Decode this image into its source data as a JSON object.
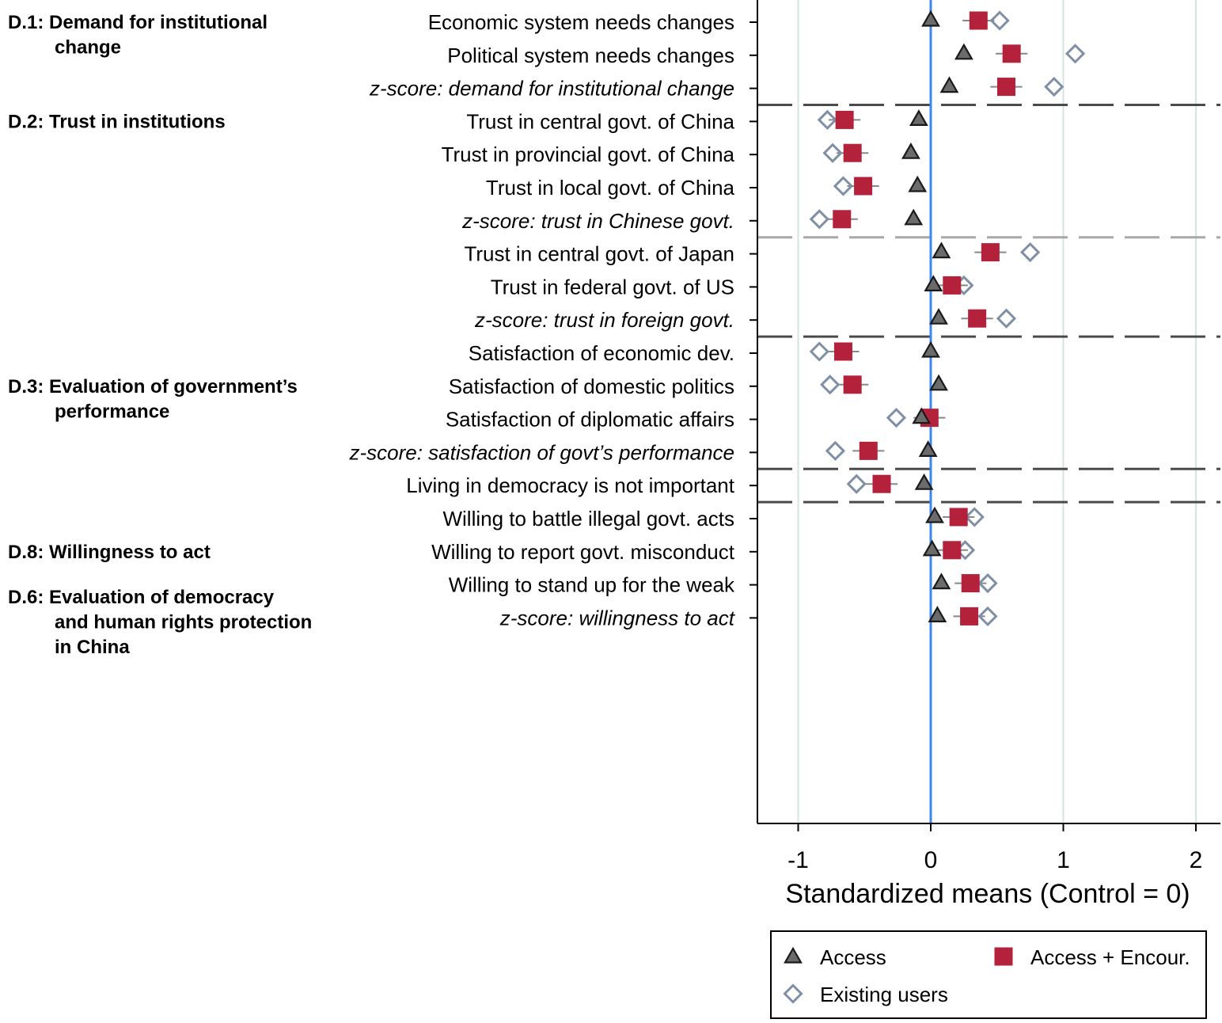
{
  "chart_data": {
    "type": "scatter",
    "xlabel": "Standardized means (Control = 0)",
    "xlim": [
      -1.3,
      2.2
    ],
    "xticks": [
      -1,
      0,
      1,
      2
    ],
    "xtick_labels": [
      "-1",
      "0",
      "1",
      "2"
    ],
    "reference_line_x": 0,
    "sections": [
      {
        "label_lines": [
          "D.1: Demand for institutional",
          "change"
        ],
        "row": 0
      },
      {
        "label_lines": [
          "D.2: Trust in institutions"
        ],
        "row": 3
      },
      {
        "label_lines": [
          "D.3: Evaluation of government’s",
          "performance"
        ],
        "row": 11
      },
      {
        "label_lines": [
          "D.6: Evaluation of democracy",
          "and human rights protection",
          "in China"
        ],
        "row": 15
      },
      {
        "label_lines": [
          "D.8: Willingness to act"
        ],
        "row": 16
      }
    ],
    "separators": [
      {
        "after_row": 2,
        "style": "dark"
      },
      {
        "after_row": 6,
        "style": "light"
      },
      {
        "after_row": 9,
        "style": "dark"
      },
      {
        "after_row": 13,
        "style": "dark"
      },
      {
        "after_row": 14,
        "style": "dark"
      }
    ],
    "rows": [
      {
        "label": "Economic system needs changes",
        "zscore": false,
        "access": 0.0,
        "encour": 0.36,
        "encour_ci": [
          0.24,
          0.48
        ],
        "existing": 0.52
      },
      {
        "label": "Political system needs changes",
        "zscore": false,
        "access": 0.25,
        "encour": 0.61,
        "encour_ci": [
          0.49,
          0.73
        ],
        "existing": 1.09
      },
      {
        "label": "z-score: demand for institutional change",
        "zscore": true,
        "access": 0.14,
        "encour": 0.57,
        "encour_ci": [
          0.45,
          0.69
        ],
        "existing": 0.93
      },
      {
        "label": "Trust in central govt. of China",
        "zscore": false,
        "access": -0.09,
        "encour": -0.65,
        "encour_ci": [
          -0.77,
          -0.53
        ],
        "existing": -0.78
      },
      {
        "label": "Trust in provincial govt. of China",
        "zscore": false,
        "access": -0.15,
        "encour": -0.59,
        "encour_ci": [
          -0.71,
          -0.47
        ],
        "existing": -0.74
      },
      {
        "label": "Trust in local govt. of China",
        "zscore": false,
        "access": -0.1,
        "encour": -0.51,
        "encour_ci": [
          -0.63,
          -0.39
        ],
        "existing": -0.66
      },
      {
        "label": "z-score: trust in Chinese govt.",
        "zscore": true,
        "access": -0.13,
        "encour": -0.67,
        "encour_ci": [
          -0.79,
          -0.55
        ],
        "existing": -0.84
      },
      {
        "label": "Trust in central govt. of Japan",
        "zscore": false,
        "access": 0.08,
        "encour": 0.45,
        "encour_ci": [
          0.33,
          0.57
        ],
        "existing": 0.75
      },
      {
        "label": "Trust in federal govt. of US",
        "zscore": false,
        "access": 0.02,
        "encour": 0.16,
        "encour_ci": [
          0.04,
          0.28
        ],
        "existing": 0.25
      },
      {
        "label": "z-score: trust in foreign govt.",
        "zscore": true,
        "access": 0.06,
        "encour": 0.35,
        "encour_ci": [
          0.23,
          0.47
        ],
        "existing": 0.57
      },
      {
        "label": "Satisfaction of economic dev.",
        "zscore": false,
        "access": 0.0,
        "encour": -0.66,
        "encour_ci": [
          -0.78,
          -0.54
        ],
        "existing": -0.84
      },
      {
        "label": "Satisfaction of domestic politics",
        "zscore": false,
        "access": 0.06,
        "encour": -0.59,
        "encour_ci": [
          -0.71,
          -0.47
        ],
        "existing": -0.76
      },
      {
        "label": "Satisfaction of diplomatic affairs",
        "zscore": false,
        "access": -0.07,
        "encour": -0.01,
        "encour_ci": [
          -0.13,
          0.11
        ],
        "existing": -0.26
      },
      {
        "label": "z-score: satisfaction of govt’s performance",
        "zscore": true,
        "access": -0.02,
        "encour": -0.47,
        "encour_ci": [
          -0.59,
          -0.35
        ],
        "existing": -0.72
      },
      {
        "label": "Living in democracy is not important",
        "zscore": false,
        "access": -0.05,
        "encour": -0.37,
        "encour_ci": [
          -0.49,
          -0.25
        ],
        "existing": -0.56
      },
      {
        "label": "Willing to battle illegal govt. acts",
        "zscore": false,
        "access": 0.03,
        "encour": 0.21,
        "encour_ci": [
          0.09,
          0.33
        ],
        "existing": 0.33
      },
      {
        "label": "Willing to report govt. misconduct",
        "zscore": false,
        "access": 0.01,
        "encour": 0.16,
        "encour_ci": [
          0.04,
          0.28
        ],
        "existing": 0.26
      },
      {
        "label": "Willing to stand up for the weak",
        "zscore": false,
        "access": 0.08,
        "encour": 0.3,
        "encour_ci": [
          0.18,
          0.42
        ],
        "existing": 0.43
      },
      {
        "label": "z-score: willingness to act",
        "zscore": true,
        "access": 0.05,
        "encour": 0.29,
        "encour_ci": [
          0.17,
          0.41
        ],
        "existing": 0.43
      }
    ],
    "legend": {
      "position": "bottom-right",
      "entries": [
        {
          "key": "access",
          "label": "Access",
          "marker": "triangle",
          "color": "#4d4d4d"
        },
        {
          "key": "encour",
          "label": "Access + Encour.",
          "marker": "square",
          "color": "#b3213b"
        },
        {
          "key": "existing",
          "label": "Existing users",
          "marker": "diamond",
          "color": "#7f8fa6"
        }
      ]
    },
    "colors": {
      "access": "#4d4d4d",
      "encour": "#b3213b",
      "existing": "#7f8fa6",
      "reference_line": "#3d86f0",
      "grid": "#d7e3e3",
      "separator_dark": "#4a4a4a",
      "separator_light": "#a8a8a8",
      "ci": "#888888"
    }
  }
}
